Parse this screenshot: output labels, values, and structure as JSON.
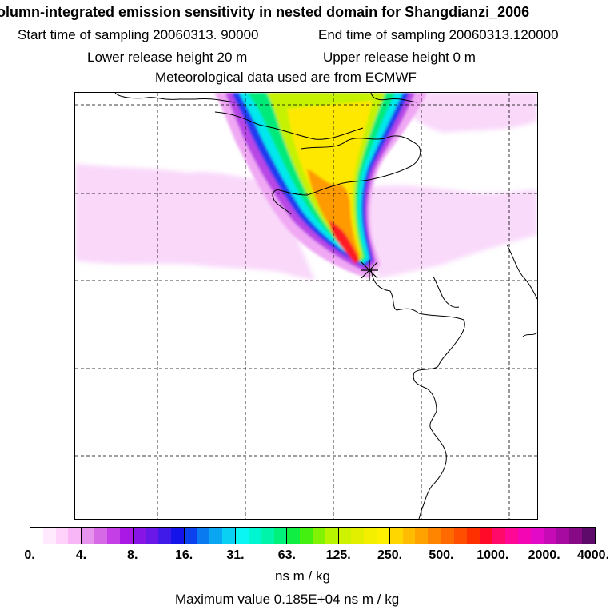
{
  "header": {
    "title": "olumn-integrated emission sensitivity in nested domain for Shangdianzi_2006",
    "start_label": "Start time of sampling 20060313. 90000",
    "end_label": "End time of sampling 20060313.120000",
    "lower_label": "Lower release height   20 m",
    "upper_label": "Upper release height    0 m",
    "met_label": "Meteorological data used are from ECMWF"
  },
  "colorbar": {
    "ticks": [
      "0.",
      "4.",
      "8.",
      "16.",
      "31.",
      "63.",
      "125.",
      "250.",
      "500.",
      "1000.",
      "2000.",
      "4000."
    ],
    "segments": [
      [
        "#ffffff",
        "#ffeafd",
        "#ffd2fb",
        "#f8b6f6"
      ],
      [
        "#e694ee",
        "#d66ae6",
        "#c440e6",
        "#aa18e6"
      ],
      [
        "#8814e6",
        "#6a18e8",
        "#3f1ae8",
        "#1414ea"
      ],
      [
        "#0c42ee",
        "#0a7af0",
        "#0aa6f2",
        "#0ad0f4"
      ],
      [
        "#0af6f4",
        "#00f6d0",
        "#00f4aa",
        "#00f27c"
      ],
      [
        "#10ee44",
        "#44f010",
        "#82f204",
        "#b6f400"
      ],
      [
        "#cef200",
        "#e2f000",
        "#f4ee00",
        "#fff000"
      ],
      [
        "#ffd600",
        "#ffbc00",
        "#ffa200",
        "#ff8400"
      ],
      [
        "#ff6a00",
        "#ff4e00",
        "#ff3000",
        "#ff0a28"
      ],
      [
        "#ff0a68",
        "#ff0896",
        "#f406b4",
        "#e20ac6"
      ],
      [
        "#c60ab6",
        "#a60aa0",
        "#860a86",
        "#5e0a6a"
      ]
    ],
    "units": "ns m / kg",
    "max_label": "Maximum value  0.185E+04 ns m / kg"
  },
  "map": {
    "release_marker": "star-marker",
    "colors": {
      "faint_pink": "#f8d4fa",
      "pink": "#f0a8f4",
      "magenta": "#b846e6",
      "blue": "#1a3ef0",
      "cyan": "#00e8ee",
      "green": "#00ea7a",
      "yellow_green": "#c4f200",
      "yellow": "#ffe800",
      "orange": "#ff9a00",
      "red": "#ff1a20"
    }
  }
}
